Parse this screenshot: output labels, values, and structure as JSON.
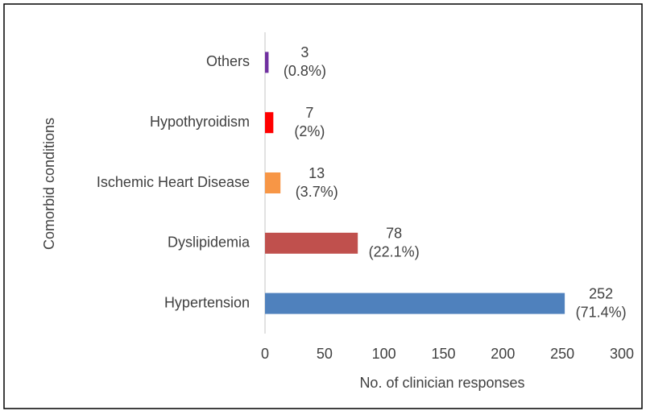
{
  "chart_data": {
    "type": "bar",
    "orientation": "horizontal",
    "categories": [
      "Others",
      "Hypothyroidism",
      "Ischemic Heart Disease",
      "Dyslipidemia",
      "Hypertension"
    ],
    "values": [
      3,
      7,
      13,
      78,
      252
    ],
    "percent_labels": [
      "(0.8%)",
      "(2%)",
      "(3.7%)",
      "(22.1%)",
      "(71.4%)"
    ],
    "colors": [
      "#7030a0",
      "#ff0000",
      "#f79646",
      "#c0504d",
      "#4f81bd"
    ],
    "xlabel": "No. of clinician responses",
    "ylabel": "Comorbid conditions",
    "xlim": [
      0,
      300
    ],
    "xticks": [
      0,
      50,
      100,
      150,
      200,
      250,
      300
    ],
    "grid": false
  }
}
